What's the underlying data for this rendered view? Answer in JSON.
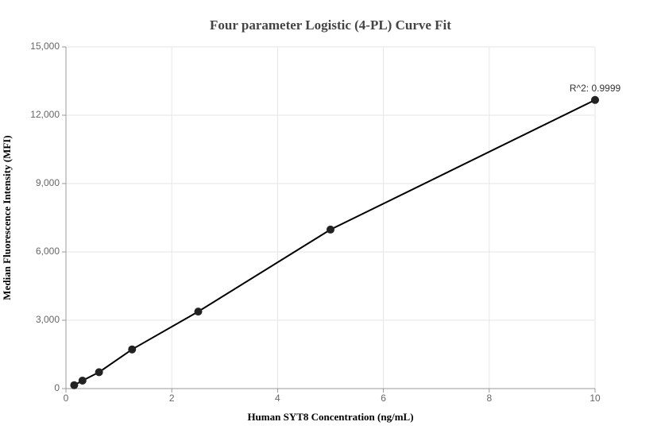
{
  "chart_data": {
    "type": "scatter",
    "title": "Four parameter Logistic (4-PL) Curve Fit",
    "x_label": "Human SYT8 Concentration (ng/mL)",
    "y_label": "Median Fluorescence Intensity (MFI)",
    "annotation": "R^2: 0.9999",
    "x": [
      0.156,
      0.3125,
      0.625,
      1.25,
      2.5,
      5,
      10
    ],
    "values": [
      150,
      350,
      720,
      1720,
      3380,
      6980,
      12670
    ],
    "color": "#222222",
    "line_color": "#000000",
    "xlim": [
      0,
      10
    ],
    "xticks": [
      0,
      2,
      4,
      6,
      8,
      10
    ],
    "ylim": [
      0,
      15000
    ],
    "yticks": [
      0,
      {
        "value": 3000,
        "label": "3,000"
      },
      {
        "value": 6000,
        "label": "6,000"
      },
      {
        "value": 9000,
        "label": "9,000"
      },
      {
        "value": 12000,
        "label": "12,000"
      },
      {
        "value": 15000,
        "label": "15,000"
      }
    ],
    "grid": true
  }
}
